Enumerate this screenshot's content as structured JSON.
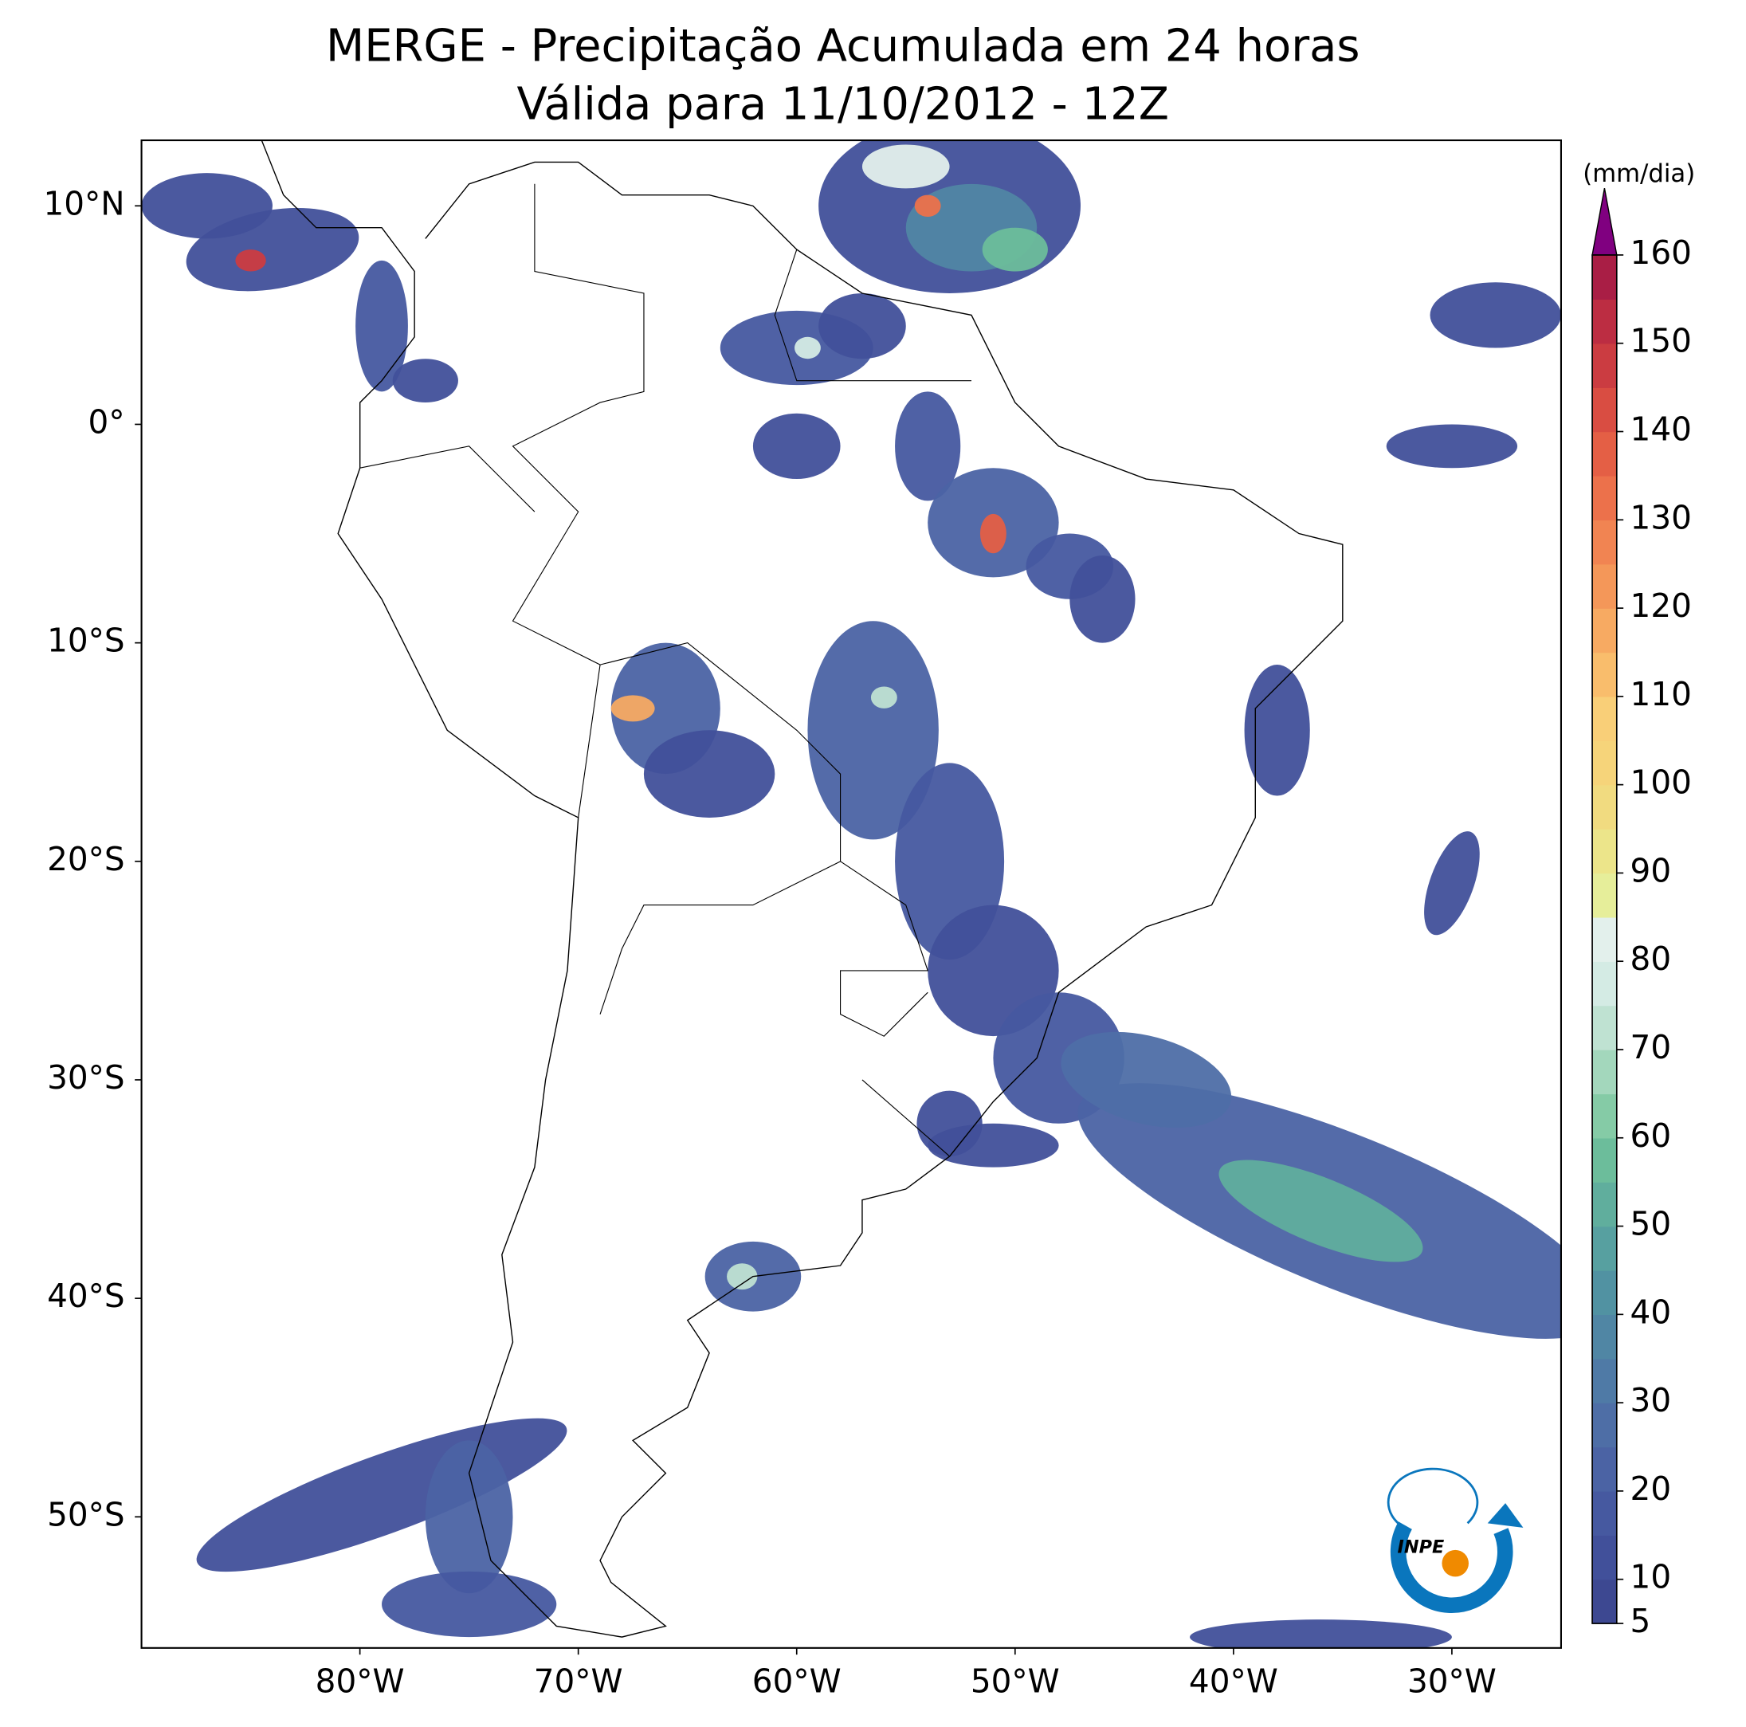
{
  "chart_data": {
    "type": "map",
    "title": "MERGE - Precipitação Acumulada em 24 horas",
    "subtitle": "Válida para 11/10/2012 - 12Z",
    "xlim": [
      -90,
      -25
    ],
    "ylim": [
      -56,
      13
    ],
    "xticks": [
      {
        "value": -80,
        "label": "80°W"
      },
      {
        "value": -70,
        "label": "70°W"
      },
      {
        "value": -60,
        "label": "60°W"
      },
      {
        "value": -50,
        "label": "50°W"
      },
      {
        "value": -40,
        "label": "40°W"
      },
      {
        "value": -30,
        "label": "30°W"
      }
    ],
    "yticks": [
      {
        "value": 10,
        "label": "10°N"
      },
      {
        "value": 0,
        "label": "0°"
      },
      {
        "value": -10,
        "label": "10°S"
      },
      {
        "value": -20,
        "label": "20°S"
      },
      {
        "value": -30,
        "label": "30°S"
      },
      {
        "value": -40,
        "label": "40°S"
      },
      {
        "value": -50,
        "label": "50°S"
      }
    ],
    "colorbar": {
      "label": "(mm/dia)",
      "lim": [
        5,
        160
      ],
      "ticks": [
        5,
        10,
        20,
        30,
        40,
        50,
        60,
        70,
        80,
        90,
        100,
        110,
        120,
        130,
        140,
        150,
        160
      ],
      "colors": [
        "#3d4891",
        "#41509a",
        "#4659a0",
        "#4b63a4",
        "#4e6ea6",
        "#4f7aa6",
        "#5086a4",
        "#5192a2",
        "#57a0a0",
        "#60ae9d",
        "#6cbd9b",
        "#85cba6",
        "#a3d7bc",
        "#bfe2d2",
        "#d4ebe4",
        "#e3f0ec",
        "#e6ee9a",
        "#ece58a",
        "#f1db80",
        "#f6d47a",
        "#f9cf78",
        "#f9bd6c",
        "#f7aa62",
        "#f49759",
        "#f18452",
        "#ec714b",
        "#e45f45",
        "#d94d42",
        "#cb3c41",
        "#bc2d42",
        "#a91e45"
      ],
      "extend_color": "#800080"
    },
    "logo": "INPE"
  }
}
